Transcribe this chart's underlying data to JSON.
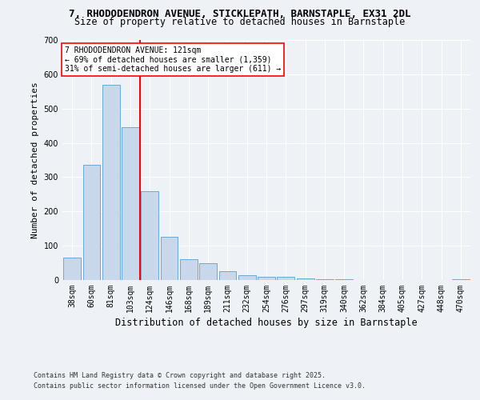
{
  "title1": "7, RHODODENDRON AVENUE, STICKLEPATH, BARNSTAPLE, EX31 2DL",
  "title2": "Size of property relative to detached houses in Barnstaple",
  "xlabel": "Distribution of detached houses by size in Barnstaple",
  "ylabel": "Number of detached properties",
  "categories": [
    "38sqm",
    "60sqm",
    "81sqm",
    "103sqm",
    "124sqm",
    "146sqm",
    "168sqm",
    "189sqm",
    "211sqm",
    "232sqm",
    "254sqm",
    "276sqm",
    "297sqm",
    "319sqm",
    "340sqm",
    "362sqm",
    "384sqm",
    "405sqm",
    "427sqm",
    "448sqm",
    "470sqm"
  ],
  "values": [
    65,
    335,
    570,
    445,
    260,
    125,
    60,
    50,
    25,
    15,
    10,
    10,
    4,
    3,
    2,
    1,
    1,
    0,
    0,
    0,
    2
  ],
  "bar_color": "#c8d8ea",
  "bar_edge_color": "#6aaad4",
  "ref_line_value": 3.5,
  "ref_line_color": "red",
  "annotation_line1": "7 RHODODENDRON AVENUE: 121sqm",
  "annotation_line2": "← 69% of detached houses are smaller (1,359)",
  "annotation_line3": "31% of semi-detached houses are larger (611) →",
  "ylim": [
    0,
    700
  ],
  "yticks": [
    0,
    100,
    200,
    300,
    400,
    500,
    600,
    700
  ],
  "footnote1": "Contains HM Land Registry data © Crown copyright and database right 2025.",
  "footnote2": "Contains public sector information licensed under the Open Government Licence v3.0.",
  "bg_color": "#eef2f7",
  "plot_bg_color": "#eef2f7",
  "title_fontsize": 9,
  "subtitle_fontsize": 8.5,
  "ylabel_fontsize": 8,
  "xlabel_fontsize": 8.5,
  "tick_fontsize": 7,
  "annotation_fontsize": 7,
  "footnote_fontsize": 6
}
